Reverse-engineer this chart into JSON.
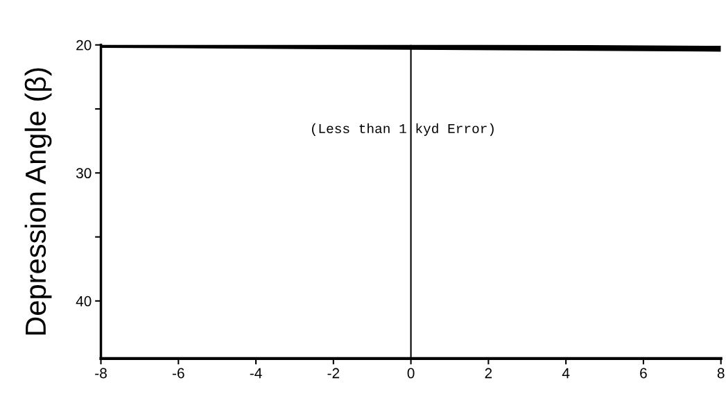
{
  "chart_data": {
    "type": "line",
    "ylabel": "Depression Angle (β)",
    "series": [
      {
        "color": "#000000",
        "x": [
          -8,
          8
        ],
        "values": [
          20,
          20.3
        ]
      }
    ],
    "xlim": [
      -8,
      8
    ],
    "xticks": [
      -8,
      -6,
      -4,
      -2,
      0,
      2,
      4,
      6,
      8
    ],
    "ylim": [
      44.5,
      20
    ],
    "yticks": [
      20,
      {
        "value": 25,
        "label": null
      },
      30,
      {
        "value": 35,
        "label": null
      },
      40
    ],
    "annotations": [
      "(Less than 1 kyd Error)"
    ],
    "ref_lines": [
      {
        "axis": "x",
        "value": 0,
        "color": "#000000"
      }
    ],
    "grid": false,
    "legend": false,
    "marker": "none",
    "line_style": "solid"
  }
}
